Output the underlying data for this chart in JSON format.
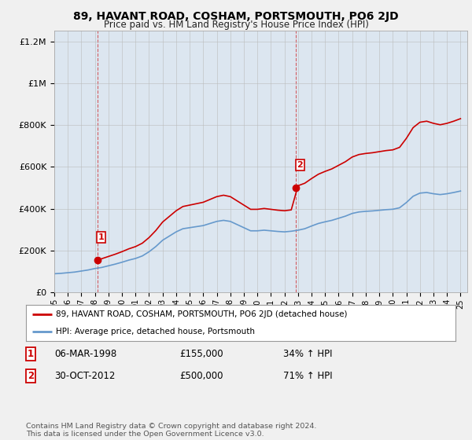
{
  "title": "89, HAVANT ROAD, COSHAM, PORTSMOUTH, PO6 2JD",
  "subtitle": "Price paid vs. HM Land Registry's House Price Index (HPI)",
  "legend_line1": "89, HAVANT ROAD, COSHAM, PORTSMOUTH, PO6 2JD (detached house)",
  "legend_line2": "HPI: Average price, detached house, Portsmouth",
  "footnote": "Contains HM Land Registry data © Crown copyright and database right 2024.\nThis data is licensed under the Open Government Licence v3.0.",
  "purchase1_date": "06-MAR-1998",
  "purchase1_price": 155000,
  "purchase1_label": "34% ↑ HPI",
  "purchase2_date": "30-OCT-2012",
  "purchase2_price": 500000,
  "purchase2_label": "71% ↑ HPI",
  "hpi_color": "#6699cc",
  "price_color": "#cc0000",
  "background_color": "#f0f0f0",
  "plot_bg_color": "#dce6f0",
  "ylim": [
    0,
    1250000
  ],
  "xlim_start": 1995.0,
  "xlim_end": 2025.5,
  "p1_year": 1998.18,
  "p2_year": 2012.83,
  "hpi_at_p1": 115000,
  "hpi_at_p2": 292000
}
